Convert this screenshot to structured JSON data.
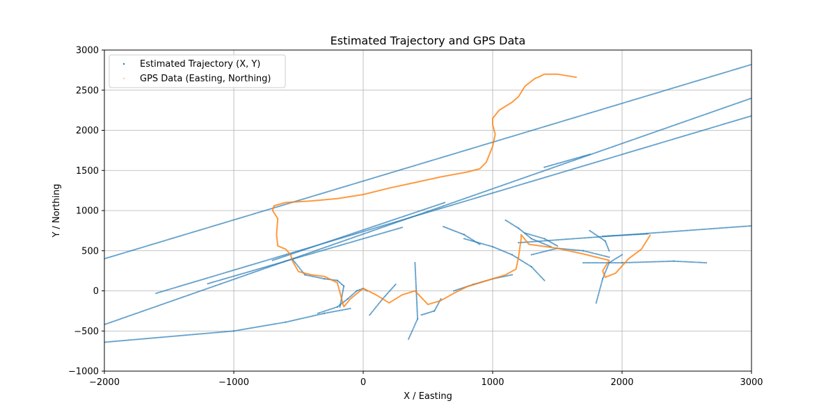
{
  "chart_data": {
    "type": "scatter",
    "title": "Estimated Trajectory and GPS Data",
    "xlabel": "X / Easting",
    "ylabel": "Y / Northing",
    "xlim": [
      -2000,
      3000
    ],
    "ylim": [
      -1000,
      3000
    ],
    "xticks": [
      -2000,
      -1000,
      0,
      1000,
      2000,
      3000
    ],
    "yticks": [
      -1000,
      -500,
      0,
      500,
      1000,
      1500,
      2000,
      2500,
      3000
    ],
    "xtick_labels": [
      "−2000",
      "−1000",
      "0",
      "1000",
      "2000",
      "3000"
    ],
    "ytick_labels": [
      "−1000",
      "−500",
      "0",
      "500",
      "1000",
      "1500",
      "2000",
      "2500",
      "3000"
    ],
    "grid": true,
    "legend_position": "top-left",
    "colors": {
      "estimated": "#1f77b4",
      "gps": "#ff7f0e"
    },
    "series": [
      {
        "name": "Estimated Trajectory (X, Y)",
        "marker": "dots",
        "color": "#1f77b4",
        "segments": [
          [
            [
              -2000,
              -420
            ],
            [
              3000,
              2400
            ]
          ],
          [
            [
              -1600,
              -30
            ],
            [
              3000,
              2180
            ]
          ],
          [
            [
              -2000,
              400
            ],
            [
              3000,
              2820
            ]
          ],
          [
            [
              -2000,
              -640
            ],
            [
              -1000,
              -500
            ],
            [
              -600,
              -390
            ],
            [
              -300,
              -280
            ],
            [
              -100,
              -220
            ]
          ],
          [
            [
              1200,
              600
            ],
            [
              3000,
              810
            ]
          ],
          [
            [
              -1200,
              90
            ],
            [
              300,
              790
            ]
          ],
          [
            [
              -700,
              380
            ],
            [
              630,
              1100
            ]
          ],
          [
            [
              1400,
              1540
            ],
            [
              1750,
              1700
            ]
          ],
          [
            [
              -550,
              400
            ],
            [
              -450,
              200
            ],
            [
              -300,
              150
            ],
            [
              -200,
              130
            ],
            [
              -150,
              60
            ],
            [
              -180,
              -200
            ]
          ],
          [
            [
              -350,
              -280
            ],
            [
              -200,
              -200
            ],
            [
              -120,
              -100
            ],
            [
              -50,
              0
            ],
            [
              0,
              30
            ],
            [
              30,
              0
            ]
          ],
          [
            [
              50,
              -300
            ],
            [
              150,
              -100
            ],
            [
              250,
              80
            ]
          ],
          [
            [
              350,
              -600
            ],
            [
              420,
              -350
            ],
            [
              400,
              350
            ]
          ],
          [
            [
              450,
              -300
            ],
            [
              550,
              -250
            ],
            [
              600,
              -100
            ]
          ],
          [
            [
              700,
              0
            ],
            [
              850,
              80
            ],
            [
              1000,
              150
            ],
            [
              1150,
              200
            ]
          ],
          [
            [
              780,
              650
            ],
            [
              1000,
              550
            ],
            [
              1150,
              450
            ],
            [
              1300,
              300
            ],
            [
              1400,
              130
            ]
          ],
          [
            [
              1100,
              880
            ],
            [
              1200,
              780
            ],
            [
              1300,
              650
            ],
            [
              1450,
              550
            ]
          ],
          [
            [
              1300,
              450
            ],
            [
              1500,
              530
            ],
            [
              1700,
              500
            ],
            [
              1900,
              420
            ]
          ],
          [
            [
              1700,
              350
            ],
            [
              2000,
              350
            ],
            [
              2400,
              370
            ],
            [
              2650,
              350
            ]
          ],
          [
            [
              1800,
              -150
            ],
            [
              1850,
              150
            ],
            [
              1900,
              350
            ],
            [
              2000,
              450
            ]
          ],
          [
            [
              1850,
              680
            ],
            [
              2200,
              710
            ]
          ],
          [
            [
              1750,
              750
            ],
            [
              1870,
              620
            ],
            [
              1900,
              500
            ]
          ],
          [
            [
              620,
              800
            ],
            [
              780,
              700
            ],
            [
              900,
              580
            ]
          ],
          [
            [
              1250,
              720
            ],
            [
              1400,
              650
            ],
            [
              1500,
              560
            ]
          ]
        ]
      },
      {
        "name": "GPS Data (Easting, Northing)",
        "marker": "line",
        "color": "#ff7f0e",
        "points": [
          [
            -150,
            -200
          ],
          [
            -100,
            -100
          ],
          [
            0,
            30
          ],
          [
            100,
            -50
          ],
          [
            200,
            -150
          ],
          [
            300,
            -50
          ],
          [
            400,
            0
          ],
          [
            500,
            -170
          ],
          [
            600,
            -120
          ],
          [
            700,
            -30
          ],
          [
            800,
            50
          ],
          [
            900,
            100
          ],
          [
            1000,
            150
          ],
          [
            1100,
            200
          ],
          [
            1180,
            270
          ],
          [
            1200,
            420
          ],
          [
            1220,
            650
          ],
          [
            1220,
            700
          ],
          [
            1280,
            580
          ],
          [
            1500,
            530
          ],
          [
            1700,
            460
          ],
          [
            1900,
            380
          ],
          [
            1850,
            250
          ],
          [
            1870,
            170
          ],
          [
            1950,
            220
          ],
          [
            2050,
            400
          ],
          [
            2150,
            520
          ],
          [
            2220,
            700
          ]
        ],
        "path2": [
          [
            -150,
            -200
          ],
          [
            -200,
            100
          ],
          [
            -300,
            180
          ],
          [
            -400,
            200
          ],
          [
            -500,
            240
          ],
          [
            -550,
            380
          ],
          [
            -560,
            450
          ],
          [
            -600,
            520
          ],
          [
            -660,
            560
          ],
          [
            -670,
            700
          ],
          [
            -660,
            900
          ],
          [
            -700,
            1000
          ],
          [
            -690,
            1060
          ],
          [
            -600,
            1100
          ],
          [
            -400,
            1120
          ],
          [
            -200,
            1150
          ],
          [
            0,
            1200
          ],
          [
            200,
            1280
          ],
          [
            400,
            1350
          ],
          [
            600,
            1420
          ],
          [
            800,
            1480
          ],
          [
            900,
            1520
          ],
          [
            950,
            1600
          ],
          [
            1000,
            1800
          ],
          [
            1020,
            1950
          ],
          [
            1000,
            2070
          ],
          [
            1000,
            2150
          ],
          [
            1050,
            2250
          ],
          [
            1150,
            2350
          ],
          [
            1200,
            2420
          ],
          [
            1250,
            2550
          ],
          [
            1330,
            2650
          ],
          [
            1350,
            2660
          ],
          [
            1400,
            2700
          ],
          [
            1500,
            2700
          ],
          [
            1650,
            2660
          ]
        ]
      }
    ]
  }
}
